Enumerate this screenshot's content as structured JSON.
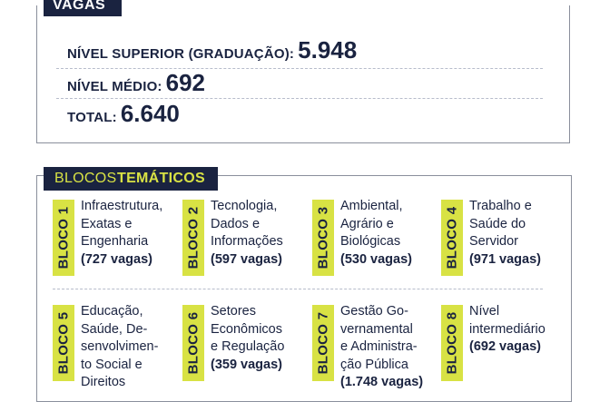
{
  "vagas": {
    "title": "VAGAS",
    "superior_label": "NÍVEL SUPERIOR (GRADUAÇÃO):",
    "superior_value": "5.948",
    "medio_label": "NÍVEL MÉDIO:",
    "medio_value": "692",
    "total_label": "TOTAL:",
    "total_value": "6.640"
  },
  "blocos": {
    "title_light": "BLOCOS",
    "title_bold": "TEMÁTICOS",
    "items": [
      {
        "badge": "BLOCO 1",
        "lines": [
          "Infraestrutura,",
          "Exatas e",
          "Engenharia"
        ],
        "vagas": "(727 vagas)"
      },
      {
        "badge": "BLOCO 2",
        "lines": [
          "Tecnologia,",
          "Dados e",
          "Informações"
        ],
        "vagas": "(597 vagas)"
      },
      {
        "badge": "BLOCO 3",
        "lines": [
          "Ambiental,",
          "Agrário e",
          "Biológicas"
        ],
        "vagas": "(530 vagas)"
      },
      {
        "badge": "BLOCO 4",
        "lines": [
          "Trabalho e",
          "Saúde do",
          "Servidor"
        ],
        "vagas": "(971 vagas)"
      },
      {
        "badge": "BLOCO 5",
        "lines": [
          "Educação,",
          "Saúde, De-",
          "senvolvimen-",
          "to Social e",
          "Direitos"
        ],
        "vagas": ""
      },
      {
        "badge": "BLOCO 6",
        "lines": [
          "Setores",
          "Econômicos",
          "e Regulação"
        ],
        "vagas": "(359 vagas)"
      },
      {
        "badge": "BLOCO 7",
        "lines": [
          "Gestão Go-",
          "vernamental",
          "e Administra-",
          "ção Pública"
        ],
        "vagas": "(1.748 vagas)"
      },
      {
        "badge": "BLOCO 8",
        "lines": [
          "Nível",
          "intermediário"
        ],
        "vagas": "(692 vagas)"
      }
    ]
  },
  "colors": {
    "navy": "#1a2340",
    "accent": "#d8e244"
  }
}
